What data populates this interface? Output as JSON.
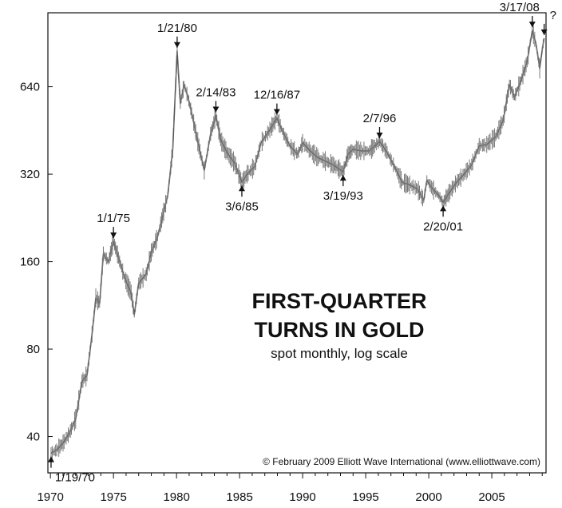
{
  "chart_data": {
    "type": "line",
    "title": "FIRST-QUARTER TURNS IN GOLD",
    "subtitle": "spot monthly, log scale",
    "xlabel": "",
    "ylabel": "",
    "yscale": "log2",
    "ylim": [
      30,
      1150
    ],
    "xlim": [
      1969.8,
      2009.3
    ],
    "yticks": [
      40,
      80,
      160,
      320,
      640
    ],
    "xticks": [
      1970,
      1975,
      1980,
      1985,
      1990,
      1995,
      2000,
      2005
    ],
    "xtick_labels": [
      "1970",
      "1975",
      "1980",
      "1985",
      "1990",
      "1995",
      "2000",
      "2005"
    ],
    "ytick_labels": [
      "40",
      "80",
      "160",
      "320",
      "640"
    ],
    "grid": false,
    "series": [
      {
        "color": "#555555",
        "points": [
          [
            1970.05,
            35
          ],
          [
            1970.5,
            36
          ],
          [
            1971.0,
            38
          ],
          [
            1971.5,
            41
          ],
          [
            1972.0,
            46
          ],
          [
            1972.5,
            62
          ],
          [
            1972.9,
            65
          ],
          [
            1973.3,
            90
          ],
          [
            1973.6,
            120
          ],
          [
            1973.9,
            115
          ],
          [
            1974.2,
            170
          ],
          [
            1974.6,
            160
          ],
          [
            1975.0,
            188
          ],
          [
            1975.4,
            165
          ],
          [
            1975.9,
            140
          ],
          [
            1976.4,
            125
          ],
          [
            1976.65,
            105
          ],
          [
            1977.0,
            135
          ],
          [
            1977.6,
            145
          ],
          [
            1978.0,
            172
          ],
          [
            1978.5,
            195
          ],
          [
            1978.9,
            230
          ],
          [
            1979.3,
            270
          ],
          [
            1979.7,
            390
          ],
          [
            1980.05,
            850
          ],
          [
            1980.3,
            560
          ],
          [
            1980.6,
            650
          ],
          [
            1980.9,
            590
          ],
          [
            1981.2,
            520
          ],
          [
            1981.6,
            430
          ],
          [
            1982.2,
            330
          ],
          [
            1982.7,
            440
          ],
          [
            1983.12,
            510
          ],
          [
            1983.5,
            420
          ],
          [
            1984.0,
            380
          ],
          [
            1984.6,
            350
          ],
          [
            1985.18,
            300
          ],
          [
            1985.6,
            320
          ],
          [
            1986.2,
            340
          ],
          [
            1986.7,
            410
          ],
          [
            1987.4,
            455
          ],
          [
            1987.96,
            500
          ],
          [
            1988.5,
            440
          ],
          [
            1989.0,
            400
          ],
          [
            1989.6,
            375
          ],
          [
            1990.0,
            410
          ],
          [
            1990.6,
            385
          ],
          [
            1991.2,
            365
          ],
          [
            1991.8,
            355
          ],
          [
            1992.4,
            345
          ],
          [
            1993.21,
            326
          ],
          [
            1993.6,
            375
          ],
          [
            1994.0,
            390
          ],
          [
            1994.6,
            385
          ],
          [
            1995.3,
            385
          ],
          [
            1996.1,
            415
          ],
          [
            1996.7,
            380
          ],
          [
            1997.2,
            345
          ],
          [
            1997.9,
            300
          ],
          [
            1998.4,
            295
          ],
          [
            1999.1,
            285
          ],
          [
            1999.6,
            260
          ],
          [
            1999.85,
            305
          ],
          [
            2000.3,
            285
          ],
          [
            2000.8,
            270
          ],
          [
            2001.14,
            256
          ],
          [
            2001.6,
            275
          ],
          [
            2002.2,
            300
          ],
          [
            2002.8,
            320
          ],
          [
            2003.4,
            345
          ],
          [
            2004.0,
            400
          ],
          [
            2004.6,
            405
          ],
          [
            2005.3,
            430
          ],
          [
            2005.9,
            490
          ],
          [
            2006.4,
            650
          ],
          [
            2006.8,
            590
          ],
          [
            2007.3,
            670
          ],
          [
            2007.8,
            780
          ],
          [
            2008.21,
            1000
          ],
          [
            2008.5,
            900
          ],
          [
            2008.8,
            740
          ],
          [
            2009.0,
            860
          ],
          [
            2009.15,
            940
          ]
        ]
      }
    ],
    "annotations": [
      {
        "label": "1/19/70",
        "x": 1970.05,
        "y": 35,
        "arrow": "up"
      },
      {
        "label": "1/1/75",
        "x": 1975.0,
        "y": 188,
        "arrow": "down"
      },
      {
        "label": "1/21/80",
        "x": 1980.05,
        "y": 850,
        "arrow": "down"
      },
      {
        "label": "2/14/83",
        "x": 1983.12,
        "y": 510,
        "arrow": "down"
      },
      {
        "label": "3/6/85",
        "x": 1985.18,
        "y": 300,
        "arrow": "up"
      },
      {
        "label": "12/16/87",
        "x": 1987.96,
        "y": 500,
        "arrow": "down"
      },
      {
        "label": "3/19/93",
        "x": 1993.21,
        "y": 326,
        "arrow": "up"
      },
      {
        "label": "2/7/96",
        "x": 1996.1,
        "y": 415,
        "arrow": "down"
      },
      {
        "label": "2/20/01",
        "x": 2001.14,
        "y": 256,
        "arrow": "up"
      },
      {
        "label": "3/17/08",
        "x": 2008.21,
        "y": 1000,
        "arrow": "down"
      },
      {
        "label": "?",
        "x": 2009.15,
        "y": 940,
        "arrow": "down"
      }
    ],
    "copyright": "© February 2009 Elliott Wave International (www.elliottwave.com)"
  }
}
